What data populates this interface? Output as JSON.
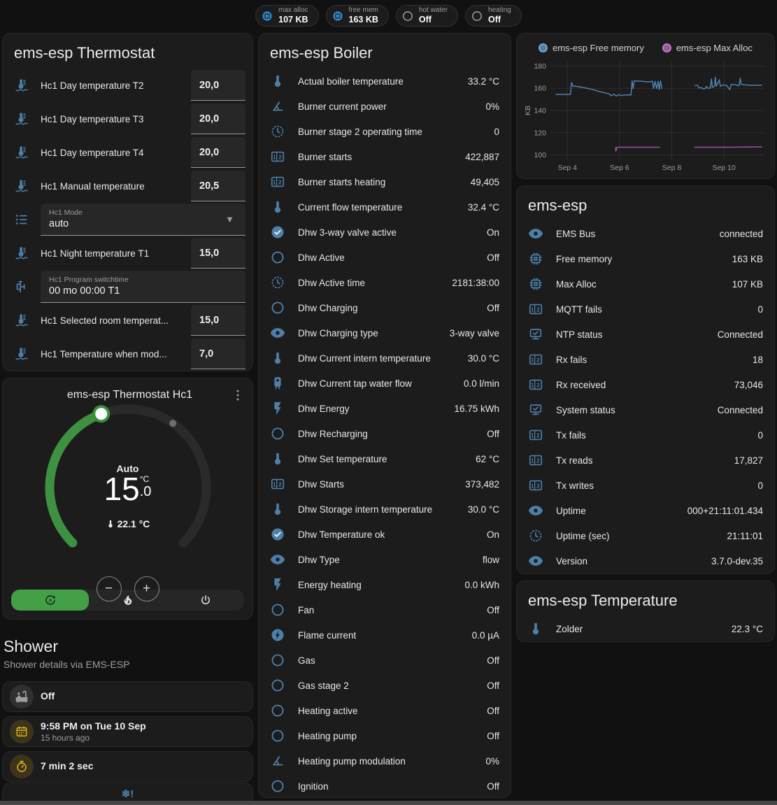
{
  "badges": [
    {
      "label": "max alloc",
      "value": "107 KB",
      "icon": "chip",
      "icon_color": "#35a0f0"
    },
    {
      "label": "free mem",
      "value": "163 KB",
      "icon": "chip",
      "icon_color": "#35a0f0"
    },
    {
      "label": "hot water",
      "value": "Off",
      "icon": "circle",
      "icon_color": "#9e9e9e"
    },
    {
      "label": "heating",
      "value": "Off",
      "icon": "circle",
      "icon_color": "#9e9e9e"
    }
  ],
  "thermostat_card": {
    "title": "ems-esp Thermostat",
    "rows": [
      {
        "type": "number",
        "icon": "thermo-wave",
        "name": "Hc1 Day temperature T2",
        "value": "20,0"
      },
      {
        "type": "number",
        "icon": "thermo-wave",
        "name": "Hc1 Day temperature T3",
        "value": "20,0"
      },
      {
        "type": "number",
        "icon": "thermo-wave",
        "name": "Hc1 Day temperature T4",
        "value": "20,0"
      },
      {
        "type": "number",
        "icon": "thermo-wave",
        "name": "Hc1 Manual temperature",
        "value": "20,5"
      },
      {
        "type": "select",
        "icon": "list",
        "label": "Hc1 Mode",
        "value": "auto"
      },
      {
        "type": "number",
        "icon": "thermo-wave",
        "name": "Hc1 Night temperature T1",
        "value": "15,0"
      },
      {
        "type": "text",
        "icon": "pipe",
        "label": "Hc1 Program switchtime",
        "value": "00 mo 00:00 T1"
      },
      {
        "type": "number",
        "icon": "thermo-wave",
        "name": "Hc1 Selected room temperat...",
        "value": "15,0"
      },
      {
        "type": "number",
        "icon": "thermo-wave",
        "name": "Hc1 Temperature when mod...",
        "value": "7,0"
      }
    ]
  },
  "hc1_card": {
    "title": "ems-esp Thermostat Hc1",
    "mode_label": "Auto",
    "target_int": "15",
    "target_dec": ".0",
    "target_unit": "°C",
    "current_temp": "22.1 °C",
    "minus": "−",
    "plus": "+",
    "modes": [
      {
        "icon": "auto",
        "active": true
      },
      {
        "icon": "fire",
        "active": false
      },
      {
        "icon": "power",
        "active": false
      }
    ]
  },
  "shower": {
    "title": "Shower",
    "subtitle": "Shower details via EMS-ESP",
    "tiles": [
      {
        "icon": "bath",
        "icon_color": "#9e9e9e",
        "icon_bg": "rgba(158,158,158,0.16)",
        "primary": "Off"
      },
      {
        "icon": "calendar",
        "icon_color": "#e7b416",
        "icon_bg": "rgba(231,180,22,0.16)",
        "primary": "9:58 PM on Tue 10 Sep",
        "secondary": "15 hours ago"
      },
      {
        "icon": "timer",
        "icon_color": "#e7b416",
        "icon_bg": "rgba(231,180,22,0.16)",
        "primary": "7 min 2 sec"
      }
    ],
    "partial_tile_icon": "❄!"
  },
  "boiler_card": {
    "title": "ems-esp Boiler",
    "rows": [
      {
        "icon": "thermo",
        "name": "Actual boiler temperature",
        "value": "33.2 °C"
      },
      {
        "icon": "angle",
        "name": "Burner current power",
        "value": "0%"
      },
      {
        "icon": "clock",
        "name": "Burner stage 2 operating time",
        "value": "0"
      },
      {
        "icon": "counter",
        "name": "Burner starts",
        "value": "422,887"
      },
      {
        "icon": "counter",
        "name": "Burner starts heating",
        "value": "49,405"
      },
      {
        "icon": "thermo",
        "name": "Current flow temperature",
        "value": "32.4 °C"
      },
      {
        "icon": "check-circle",
        "name": "Dhw 3-way valve active",
        "value": "On"
      },
      {
        "icon": "circle",
        "name": "Dhw Active",
        "value": "Off"
      },
      {
        "icon": "clock",
        "name": "Dhw Active time",
        "value": "2181:38:00"
      },
      {
        "icon": "circle",
        "name": "Dhw Charging",
        "value": "Off"
      },
      {
        "icon": "eye",
        "name": "Dhw Charging type",
        "value": "3-way valve"
      },
      {
        "icon": "thermo",
        "name": "Dhw Current intern temperature",
        "value": "30.0 °C"
      },
      {
        "icon": "boiler",
        "name": "Dhw Current tap water flow",
        "value": "0.0 l/min"
      },
      {
        "icon": "flash",
        "name": "Dhw Energy",
        "value": "16.75 kWh"
      },
      {
        "icon": "circle",
        "name": "Dhw Recharging",
        "value": "Off"
      },
      {
        "icon": "thermo",
        "name": "Dhw Set temperature",
        "value": "62 °C"
      },
      {
        "icon": "counter",
        "name": "Dhw Starts",
        "value": "373,482"
      },
      {
        "icon": "thermo",
        "name": "Dhw Storage intern temperature",
        "value": "30.0 °C"
      },
      {
        "icon": "check-circle",
        "name": "Dhw Temperature ok",
        "value": "On"
      },
      {
        "icon": "eye",
        "name": "Dhw Type",
        "value": "flow"
      },
      {
        "icon": "flash",
        "name": "Energy heating",
        "value": "0.0 kWh"
      },
      {
        "icon": "circle",
        "name": "Fan",
        "value": "Off"
      },
      {
        "icon": "flash-circle",
        "name": "Flame current",
        "value": "0.0 µA"
      },
      {
        "icon": "circle",
        "name": "Gas",
        "value": "Off"
      },
      {
        "icon": "circle",
        "name": "Gas stage 2",
        "value": "Off"
      },
      {
        "icon": "circle",
        "name": "Heating active",
        "value": "Off"
      },
      {
        "icon": "circle",
        "name": "Heating pump",
        "value": "Off"
      },
      {
        "icon": "angle",
        "name": "Heating pump modulation",
        "value": "0%"
      },
      {
        "icon": "circle",
        "name": "Ignition",
        "value": "Off"
      }
    ]
  },
  "emsesp_card": {
    "title": "ems-esp",
    "rows": [
      {
        "icon": "eye",
        "name": "EMS Bus",
        "value": "connected"
      },
      {
        "icon": "chip",
        "name": "Free memory",
        "value": "163 KB"
      },
      {
        "icon": "chip",
        "name": "Max Alloc",
        "value": "107 KB"
      },
      {
        "icon": "counter",
        "name": "MQTT fails",
        "value": "0"
      },
      {
        "icon": "netcheck",
        "name": "NTP status",
        "value": "Connected"
      },
      {
        "icon": "counter",
        "name": "Rx fails",
        "value": "18"
      },
      {
        "icon": "counter",
        "name": "Rx received",
        "value": "73,046"
      },
      {
        "icon": "netcheck",
        "name": "System status",
        "value": "Connected"
      },
      {
        "icon": "counter",
        "name": "Tx fails",
        "value": "0"
      },
      {
        "icon": "counter",
        "name": "Tx reads",
        "value": "17,827"
      },
      {
        "icon": "counter",
        "name": "Tx writes",
        "value": "0"
      },
      {
        "icon": "eye",
        "name": "Uptime",
        "value": "000+21:11:01.434"
      },
      {
        "icon": "clock",
        "name": "Uptime (sec)",
        "value": "21:11:01"
      },
      {
        "icon": "eye",
        "name": "Version",
        "value": "3.7.0-dev.35"
      }
    ]
  },
  "temperature_card": {
    "title": "ems-esp Temperature",
    "rows": [
      {
        "icon": "thermo",
        "name": "Zolder",
        "value": "22.3 °C"
      }
    ]
  },
  "chart_data": {
    "type": "line",
    "title": "",
    "xlabel": "",
    "ylabel": "KB",
    "grid": true,
    "legend_position": "top",
    "xlim": [
      3.35,
      11.55
    ],
    "ylim": [
      96,
      184
    ],
    "yticks": [
      100,
      120,
      140,
      160,
      180
    ],
    "xticks": [
      {
        "v": 4,
        "label": "Sep 4"
      },
      {
        "v": 6,
        "label": "Sep 6"
      },
      {
        "v": 8,
        "label": "Sep 8"
      },
      {
        "v": 10,
        "label": "Sep 10"
      }
    ],
    "series": [
      {
        "name": "ems-esp Free memory",
        "color": "#4e81ad",
        "segments": [
          [
            [
              3.55,
              154.5
            ],
            [
              3.8,
              154.5
            ],
            [
              4.12,
              154.5
            ],
            [
              4.16,
              165
            ],
            [
              4.22,
              162
            ],
            [
              4.4,
              161.5
            ],
            [
              4.65,
              160.5
            ],
            [
              4.95,
              159
            ],
            [
              5.25,
              157
            ],
            [
              5.5,
              155.5
            ],
            [
              5.62,
              154.8
            ],
            [
              5.68,
              153.2
            ],
            [
              5.78,
              154.6
            ],
            [
              5.88,
              153
            ],
            [
              5.98,
              154.2
            ],
            [
              6.08,
              153.4
            ],
            [
              6.18,
              154
            ],
            [
              6.44,
              154
            ],
            [
              6.48,
              166.5
            ],
            [
              6.52,
              159.8
            ],
            [
              6.56,
              166.5
            ],
            [
              6.9,
              166.3
            ],
            [
              7.05,
              165.6
            ],
            [
              7.26,
              166.2
            ],
            [
              7.3,
              159.8
            ],
            [
              7.36,
              166.2
            ],
            [
              7.42,
              159.8
            ],
            [
              7.48,
              166.2
            ],
            [
              7.52,
              158.8
            ],
            [
              7.57,
              166.6
            ],
            [
              7.62,
              159.4
            ]
          ],
          [
            [
              8.88,
              162.4
            ],
            [
              9.0,
              162.6
            ],
            [
              9.04,
              160.2
            ],
            [
              9.14,
              160.6
            ],
            [
              9.2,
              159.4
            ],
            [
              9.28,
              159.6
            ],
            [
              9.32,
              161.6
            ],
            [
              9.4,
              159.8
            ],
            [
              9.48,
              160.4
            ],
            [
              9.52,
              168.4
            ],
            [
              9.56,
              160.8
            ],
            [
              9.64,
              161.8
            ],
            [
              9.67,
              170
            ],
            [
              9.71,
              161.8
            ],
            [
              9.82,
              167.6
            ],
            [
              9.86,
              161.8
            ],
            [
              9.95,
              163
            ],
            [
              10.1,
              162.6
            ],
            [
              10.22,
              158.8
            ],
            [
              10.28,
              163.4
            ],
            [
              10.45,
              163
            ],
            [
              10.58,
              162.4
            ],
            [
              10.62,
              169
            ],
            [
              10.66,
              163.6
            ],
            [
              10.8,
              163
            ],
            [
              11.05,
              162.6
            ],
            [
              11.45,
              162.8
            ]
          ]
        ]
      },
      {
        "name": "ems-esp Max Alloc",
        "color": "#9c51a1",
        "segments": [
          [
            [
              5.84,
              107
            ],
            [
              5.86,
              103.5
            ],
            [
              5.9,
              107
            ],
            [
              7.55,
              107
            ]
          ],
          [
            [
              8.86,
              107
            ],
            [
              10.2,
              107
            ],
            [
              11.45,
              107.4
            ]
          ]
        ]
      }
    ]
  }
}
